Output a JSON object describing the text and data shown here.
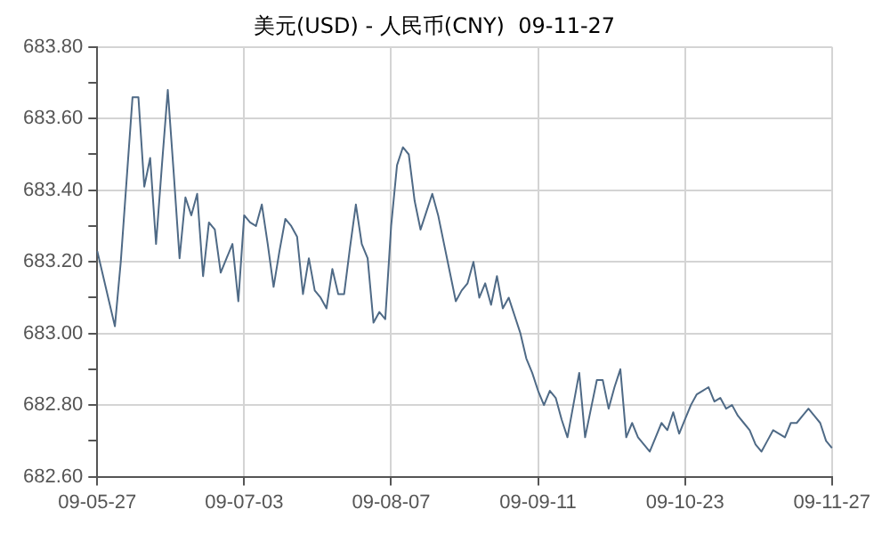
{
  "chart_data": {
    "type": "line",
    "title": "美元(USD) - 人民币(CNY)  09-11-27",
    "categories": [
      "09-05-27",
      null,
      null,
      null,
      null,
      null,
      null,
      null,
      null,
      null,
      null,
      null,
      null,
      null,
      null,
      null,
      null,
      null,
      null,
      null,
      null,
      null,
      null,
      null,
      null,
      "09-07-03",
      null,
      null,
      null,
      null,
      null,
      null,
      null,
      null,
      null,
      null,
      null,
      null,
      null,
      null,
      null,
      null,
      null,
      null,
      null,
      null,
      null,
      null,
      null,
      null,
      "09-08-07",
      null,
      null,
      null,
      null,
      null,
      null,
      null,
      null,
      null,
      null,
      null,
      null,
      null,
      null,
      null,
      null,
      null,
      null,
      null,
      null,
      null,
      null,
      null,
      null,
      "09-09-11",
      null,
      null,
      null,
      null,
      null,
      null,
      null,
      null,
      null,
      null,
      null,
      null,
      null,
      null,
      null,
      null,
      null,
      null,
      null,
      null,
      null,
      null,
      null,
      null,
      "09-10-23",
      null,
      null,
      null,
      null,
      null,
      null,
      null,
      null,
      null,
      null,
      null,
      null,
      null,
      null,
      null,
      null,
      null,
      null,
      null,
      null,
      null,
      null,
      null,
      null,
      "09-11-27"
    ],
    "series": [
      {
        "color": "#4f6a86",
        "values": [
          683.23,
          683.16,
          683.09,
          683.02,
          683.2,
          683.43,
          683.66,
          683.66,
          683.41,
          683.49,
          683.25,
          683.47,
          683.68,
          683.45,
          683.21,
          683.38,
          683.33,
          683.39,
          683.16,
          683.31,
          683.29,
          683.17,
          683.21,
          683.25,
          683.09,
          683.33,
          683.31,
          683.3,
          683.36,
          683.25,
          683.13,
          683.23,
          683.32,
          683.3,
          683.27,
          683.11,
          683.21,
          683.12,
          683.1,
          683.07,
          683.18,
          683.11,
          683.11,
          683.24,
          683.36,
          683.25,
          683.21,
          683.03,
          683.06,
          683.04,
          683.3,
          683.47,
          683.52,
          683.5,
          683.37,
          683.29,
          683.34,
          683.39,
          683.33,
          683.25,
          683.17,
          683.09,
          683.12,
          683.14,
          683.2,
          683.1,
          683.14,
          683.08,
          683.16,
          683.07,
          683.1,
          683.05,
          683,
          682.93,
          682.89,
          682.84,
          682.8,
          682.84,
          682.82,
          682.76,
          682.71,
          682.8,
          682.89,
          682.71,
          682.79,
          682.87,
          682.87,
          682.79,
          682.85,
          682.9,
          682.71,
          682.75,
          682.71,
          682.69,
          682.67,
          682.71,
          682.75,
          682.73,
          682.78,
          682.72,
          682.76,
          682.8,
          682.83,
          682.84,
          682.85,
          682.81,
          682.82,
          682.79,
          682.8,
          682.77,
          682.75,
          682.73,
          682.69,
          682.67,
          682.7,
          682.73,
          682.72,
          682.71,
          682.75,
          682.75,
          682.77,
          682.79,
          682.77,
          682.75,
          682.7,
          682.68
        ]
      }
    ],
    "ylim": [
      682.6,
      683.8
    ],
    "yticks": [
      {
        "value": 682.6,
        "label": "682.60"
      },
      {
        "value": 682.7,
        "label": null
      },
      {
        "value": 682.8,
        "label": "682.80"
      },
      {
        "value": 682.9,
        "label": null
      },
      {
        "value": 683.0,
        "label": "683.00"
      },
      {
        "value": 683.1,
        "label": null
      },
      {
        "value": 683.2,
        "label": "683.20"
      },
      {
        "value": 683.3,
        "label": null
      },
      {
        "value": 683.4,
        "label": "683.40"
      },
      {
        "value": 683.5,
        "label": null
      },
      {
        "value": 683.6,
        "label": "683.60"
      },
      {
        "value": 683.7,
        "label": null
      },
      {
        "value": 683.8,
        "label": "683.80"
      }
    ],
    "grid": true,
    "legend": false,
    "marker": "none",
    "line_style": "solid"
  }
}
